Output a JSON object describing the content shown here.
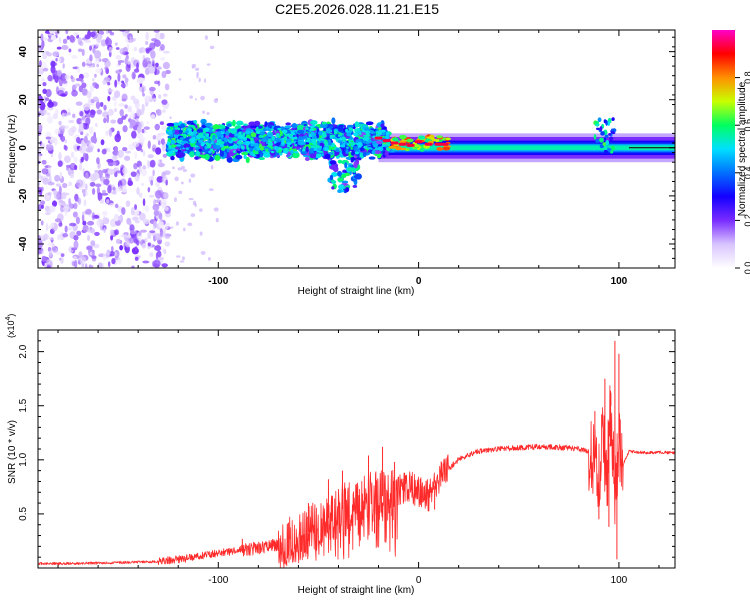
{
  "title": "C2E5.2026.028.11.21.E15",
  "chart_data": [
    {
      "type": "heatmap",
      "xlabel": "Height of straight line (km)",
      "ylabel": "Frequency (Hz)",
      "xlim": [
        -190,
        128
      ],
      "ylim": [
        -50,
        49
      ],
      "xticks": [
        -100,
        0,
        100
      ],
      "yticks": [
        -40,
        -20,
        0,
        20,
        40
      ],
      "colorbar": {
        "label": "Normalized spectral amplitude",
        "range": [
          0.0,
          1.0
        ],
        "ticks": [
          0.0,
          0.2,
          0.4,
          0.6,
          0.8
        ],
        "tick_labels": [
          "0.0",
          "0.2",
          "0.4",
          "0.6",
          "0.8"
        ],
        "colormap": [
          "#ffffff",
          "#d8c4ff",
          "#7a2cff",
          "#1400ff",
          "#0070ff",
          "#00e0ff",
          "#00ff60",
          "#c8ff00",
          "#ff9000",
          "#ff0000",
          "#ff00c8"
        ]
      },
      "regions": [
        {
          "name": "noise",
          "x_range": [
            -190,
            -125
          ],
          "freq_range": [
            -50,
            49
          ],
          "amplitude": 0.15
        },
        {
          "name": "scattered-band",
          "x_range": [
            -125,
            -15
          ],
          "freq_center": 3,
          "half_width": 7,
          "amplitude": 0.3
        },
        {
          "name": "transition",
          "x_range": [
            -15,
            15
          ],
          "freq_center": 2,
          "half_width": 3,
          "amplitude": 0.85
        },
        {
          "name": "stable-band",
          "x_range": [
            15,
            128
          ],
          "freq_center": 0,
          "half_width": 2,
          "amplitude": 0.45
        }
      ]
    },
    {
      "type": "line",
      "xlabel": "Height of straight line (km)",
      "ylabel": "SNR (10 * v/v)",
      "y_multiplier_label": "(x10",
      "y_multiplier_exp": "4",
      "y_multiplier_close": ")",
      "xlim": [
        -190,
        128
      ],
      "ylim": [
        0,
        22000
      ],
      "xticks": [
        -100,
        0,
        100
      ],
      "yticks": [
        5000,
        10000,
        15000,
        20000
      ],
      "ytick_labels": [
        "0.5",
        "1.0",
        "1.5",
        "2.0"
      ],
      "series": [
        {
          "name": "SNR",
          "color": "#ff2a2a",
          "x": [
            -190,
            -160,
            -130,
            -115,
            -100,
            -85,
            -75,
            -65,
            -60,
            -55,
            -50,
            -45,
            -40,
            -35,
            -30,
            -25,
            -20,
            -15,
            -10,
            -5,
            0,
            5,
            10,
            15,
            20,
            25,
            30,
            40,
            50,
            60,
            70,
            80,
            85,
            88,
            90,
            92,
            94,
            96,
            98,
            100,
            102,
            105,
            110,
            115,
            120,
            128
          ],
          "values": [
            400,
            450,
            600,
            900,
            1400,
            1700,
            2000,
            2300,
            2800,
            3300,
            4000,
            4600,
            5200,
            5800,
            6200,
            6500,
            6600,
            6700,
            7200,
            7600,
            7000,
            6700,
            8200,
            9200,
            10000,
            10500,
            10800,
            11000,
            11100,
            11200,
            11150,
            11000,
            10800,
            10600,
            9000,
            12000,
            8000,
            15000,
            7000,
            12000,
            9500,
            10800,
            10700,
            10650,
            10700,
            10650
          ],
          "spikes": [
            {
              "x": -88,
              "value": 2700
            },
            {
              "x": -65,
              "value": 4200
            },
            {
              "x": -55,
              "value": 6000
            },
            {
              "x": -45,
              "value": 8200
            },
            {
              "x": -38,
              "value": 9000
            },
            {
              "x": -25,
              "value": 10400
            },
            {
              "x": -22,
              "value": 3200
            },
            {
              "x": -18,
              "value": 11200
            },
            {
              "x": -12,
              "value": 9800
            },
            {
              "x": -7,
              "value": 8800
            },
            {
              "x": 8,
              "value": 5400
            },
            {
              "x": 88,
              "value": 14500
            },
            {
              "x": 90,
              "value": 4500
            },
            {
              "x": 93,
              "value": 17500
            },
            {
              "x": 95,
              "value": 3800
            },
            {
              "x": 96,
              "value": 16200
            },
            {
              "x": 98,
              "value": 21000
            },
            {
              "x": 99,
              "value": 800
            },
            {
              "x": 100,
              "value": 19800
            }
          ]
        }
      ]
    }
  ]
}
